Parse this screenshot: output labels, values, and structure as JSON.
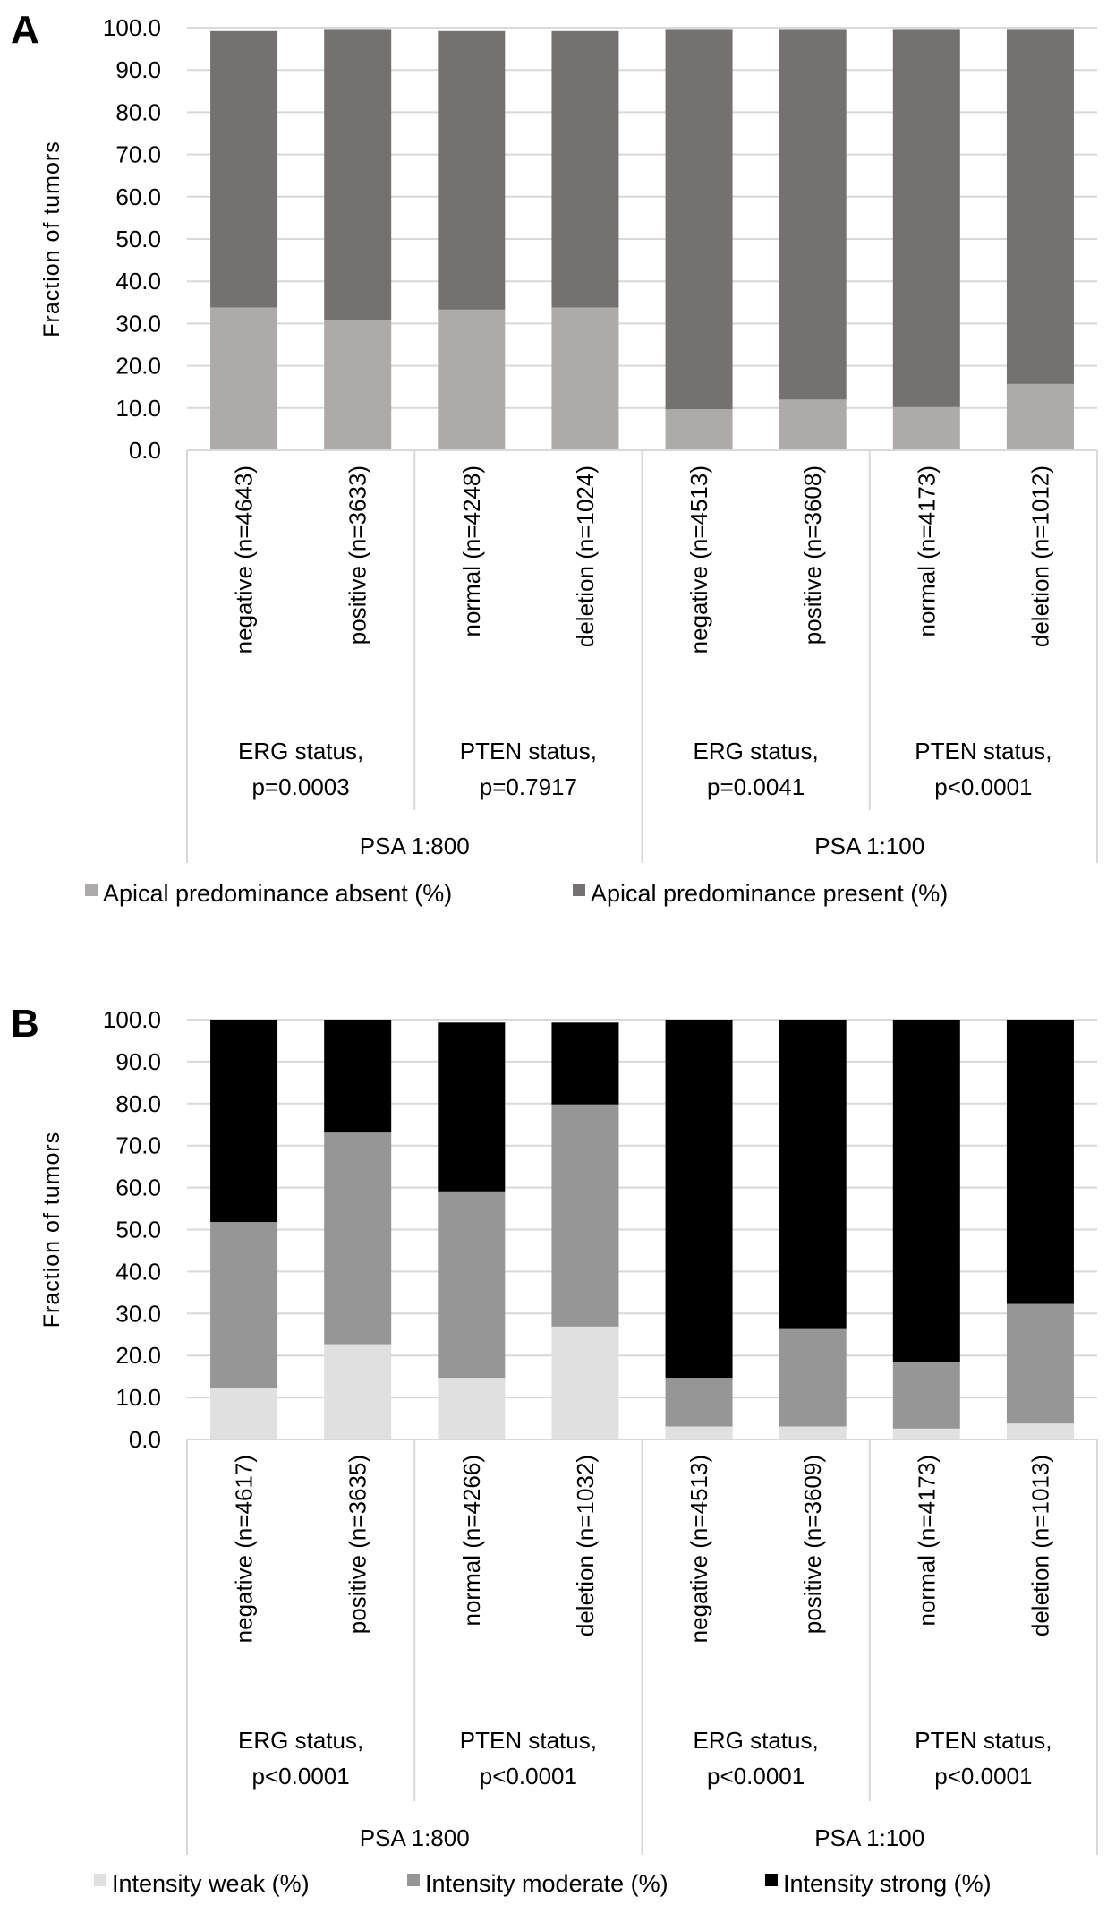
{
  "chart_data": [
    {
      "type": "bar",
      "stacked": true,
      "panel_label": "A",
      "ylabel": "Fraction of tumors",
      "ylim": [
        0,
        100
      ],
      "yticks": [
        "0.0",
        "10.0",
        "20.0",
        "30.0",
        "40.0",
        "50.0",
        "60.0",
        "70.0",
        "80.0",
        "90.0",
        "100.0"
      ],
      "grid": true,
      "legend_position": "bottom",
      "categories": [
        "negative (n=4643)",
        "positive (n=3633)",
        "normal (n=4248)",
        "deletion (n=1024)",
        "negative (n=4513)",
        "positive (n=3608)",
        "normal (n=4173)",
        "deletion (n=1012)"
      ],
      "groups": [
        {
          "line1": "ERG status,",
          "line2": "p=0.0003"
        },
        {
          "line1": "PTEN status,",
          "line2": "p=0.7917"
        },
        {
          "line1": "ERG status,",
          "line2": "p=0.0041"
        },
        {
          "line1": "PTEN status,",
          "line2": "p<0.0001"
        }
      ],
      "supergroups": [
        "PSA 1:800",
        "PSA 1:100"
      ],
      "series": [
        {
          "name": "Apical predominance absent (%)",
          "color": "#aeaaaa",
          "values": [
            33.8,
            30.8,
            33.3,
            33.8,
            9.7,
            12.0,
            10.2,
            15.7
          ]
        },
        {
          "name": "Apical predominance present (%)",
          "color": "#767171",
          "values": [
            65.4,
            68.9,
            65.9,
            65.4,
            90.0,
            87.7,
            89.5,
            84.0
          ]
        }
      ]
    },
    {
      "type": "bar",
      "stacked": true,
      "panel_label": "B",
      "ylabel": "Fraction of tumors",
      "ylim": [
        0,
        100
      ],
      "yticks": [
        "0.0",
        "10.0",
        "20.0",
        "30.0",
        "40.0",
        "50.0",
        "60.0",
        "70.0",
        "80.0",
        "90.0",
        "100.0"
      ],
      "grid": true,
      "legend_position": "bottom",
      "categories": [
        "negative (n=4617)",
        "positive (n=3635)",
        "normal (n=4266)",
        "deletion (n=1032)",
        "negative (n=4513)",
        "positive (n=3609)",
        "normal (n=4173)",
        "deletion (n=1013)"
      ],
      "groups": [
        {
          "line1": "ERG status,",
          "line2": "p<0.0001"
        },
        {
          "line1": "PTEN status,",
          "line2": "p<0.0001"
        },
        {
          "line1": "ERG status,",
          "line2": "p<0.0001"
        },
        {
          "line1": "PTEN status,",
          "line2": "p<0.0001"
        }
      ],
      "supergroups": [
        "PSA 1:800",
        "PSA 1:100"
      ],
      "series": [
        {
          "name": "Intensity weak (%)",
          "color": "#e0e0e0",
          "values": [
            12.3,
            22.7,
            14.7,
            26.9,
            3.1,
            3.1,
            2.6,
            3.8
          ]
        },
        {
          "name": "Intensity moderate (%)",
          "color": "#969696",
          "values": [
            39.5,
            50.4,
            44.4,
            52.9,
            11.6,
            23.2,
            15.8,
            28.5
          ]
        },
        {
          "name": "Intensity strong (%)",
          "color": "#000000",
          "values": [
            48.2,
            26.9,
            40.2,
            19.5,
            85.3,
            73.7,
            81.6,
            67.7
          ]
        }
      ]
    }
  ]
}
